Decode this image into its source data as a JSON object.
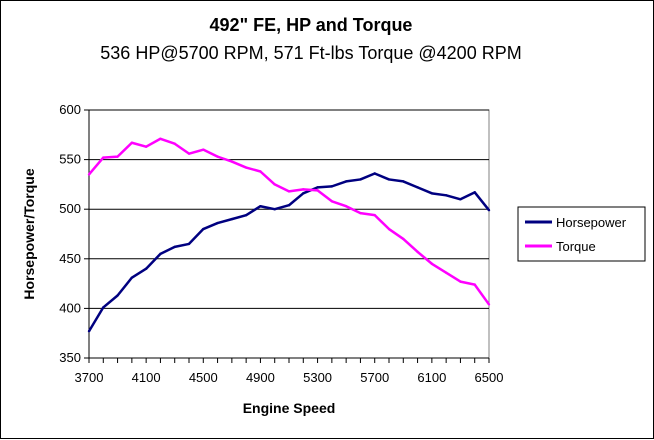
{
  "chart_data": {
    "type": "line",
    "title": "492\" FE, HP and Torque",
    "subtitle": "536 HP@5700 RPM, 571 Ft-lbs Torque @4200 RPM",
    "xlabel": "Engine Speed",
    "ylabel": "Horsepower/Torque",
    "xlim": [
      3700,
      6500
    ],
    "ylim": [
      350,
      600
    ],
    "x_ticks": [
      "3700",
      "4100",
      "4500",
      "4900",
      "5300",
      "5700",
      "6100",
      "6500"
    ],
    "y_ticks": [
      "350",
      "400",
      "450",
      "500",
      "550",
      "600"
    ],
    "grid": "horizontal",
    "legend_position": "right",
    "x": [
      3700,
      3800,
      3900,
      4000,
      4100,
      4200,
      4300,
      4400,
      4500,
      4600,
      4700,
      4800,
      4900,
      5000,
      5100,
      5200,
      5300,
      5400,
      5500,
      5600,
      5700,
      5800,
      5900,
      6000,
      6100,
      6200,
      6300,
      6400,
      6500
    ],
    "series": [
      {
        "name": "Horsepower",
        "color": "#000080",
        "values": [
          377,
          401,
          413,
          431,
          440,
          455,
          462,
          465,
          480,
          486,
          490,
          494,
          503,
          500,
          504,
          516,
          522,
          523,
          528,
          530,
          536,
          530,
          528,
          522,
          516,
          514,
          510,
          517,
          499
        ]
      },
      {
        "name": "Torque",
        "color": "#ff00ff",
        "values": [
          535,
          552,
          553,
          567,
          563,
          571,
          566,
          556,
          560,
          553,
          548,
          542,
          538,
          525,
          518,
          520,
          519,
          508,
          503,
          496,
          494,
          480,
          470,
          457,
          445,
          436,
          427,
          424,
          404
        ]
      }
    ]
  }
}
